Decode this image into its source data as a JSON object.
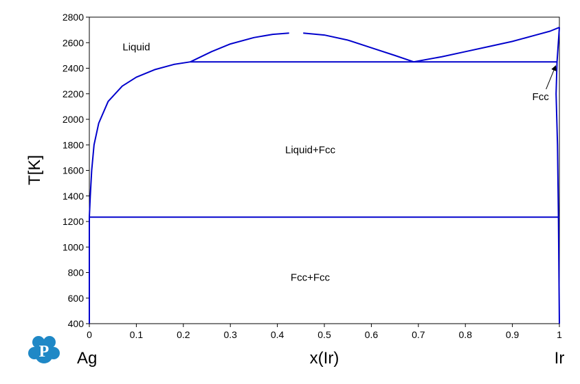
{
  "chart_data": {
    "type": "line",
    "title": "",
    "xlabel": "x(Ir)",
    "ylabel": "T[K]",
    "xlim": [
      0,
      1
    ],
    "ylim": [
      400,
      2800
    ],
    "xticks": [
      0,
      0.1,
      0.2,
      0.3,
      0.4,
      0.5,
      0.6,
      0.7,
      0.8,
      0.9,
      1
    ],
    "xtick_labels": [
      "0",
      "0.1",
      "0.2",
      "0.3",
      "0.4",
      "0.5",
      "0.6",
      "0.7",
      "0.8",
      "0.9",
      "1"
    ],
    "yticks": [
      400,
      600,
      800,
      1000,
      1200,
      1400,
      1600,
      1800,
      2000,
      2200,
      2400,
      2600,
      2800
    ],
    "ytick_labels": [
      "400",
      "600",
      "800",
      "1000",
      "1200",
      "1400",
      "1600",
      "1800",
      "2000",
      "2200",
      "2400",
      "2600",
      "2800"
    ],
    "end_labels": {
      "left": "Ag",
      "right": "Ir"
    },
    "line_color": "#0000cc",
    "series": [
      {
        "x": [
          0,
          0.002,
          0.005,
          0.01,
          0.02,
          0.04,
          0.07,
          0.1,
          0.14,
          0.18,
          0.215
        ],
        "y": [
          1234,
          1400,
          1600,
          1800,
          1970,
          2140,
          2260,
          2330,
          2390,
          2430,
          2450
        ]
      },
      {
        "x": [
          0.215,
          0.26,
          0.3,
          0.35,
          0.39,
          0.425
        ],
        "y": [
          2450,
          2530,
          2590,
          2640,
          2665,
          2675
        ]
      },
      {
        "x": [
          0.455,
          0.5,
          0.55,
          0.6,
          0.65,
          0.69
        ],
        "y": [
          2675,
          2660,
          2620,
          2560,
          2500,
          2450
        ]
      },
      {
        "x": [
          0.69,
          0.75,
          0.8,
          0.85,
          0.9,
          0.95,
          0.98,
          1.0
        ],
        "y": [
          2450,
          2490,
          2530,
          2570,
          2610,
          2660,
          2690,
          2720
        ]
      },
      {
        "x": [
          0.215,
          0.995
        ],
        "y": [
          2450,
          2450
        ]
      },
      {
        "x": [
          0,
          1.0
        ],
        "y": [
          1234,
          1234
        ]
      },
      {
        "x": [
          0,
          0
        ],
        "y": [
          400,
          1234
        ]
      },
      {
        "x": [
          1.0,
          0.995,
          0.993,
          0.996,
          0.998,
          1.0
        ],
        "y": [
          2720,
          2450,
          2200,
          1800,
          1234,
          400
        ]
      }
    ],
    "annotations": [
      {
        "text": "Liquid",
        "x": 0.1,
        "y": 2540
      },
      {
        "text": "Liquid+Fcc",
        "x": 0.47,
        "y": 1735
      },
      {
        "text": "Fcc+Fcc",
        "x": 0.47,
        "y": 735
      },
      {
        "text": "Fcc",
        "x": 0.96,
        "y": 2150,
        "arrow_to": {
          "x": 0.995,
          "y": 2440
        }
      }
    ]
  },
  "logo": {
    "letter": "P",
    "color": "#1f88c6"
  }
}
